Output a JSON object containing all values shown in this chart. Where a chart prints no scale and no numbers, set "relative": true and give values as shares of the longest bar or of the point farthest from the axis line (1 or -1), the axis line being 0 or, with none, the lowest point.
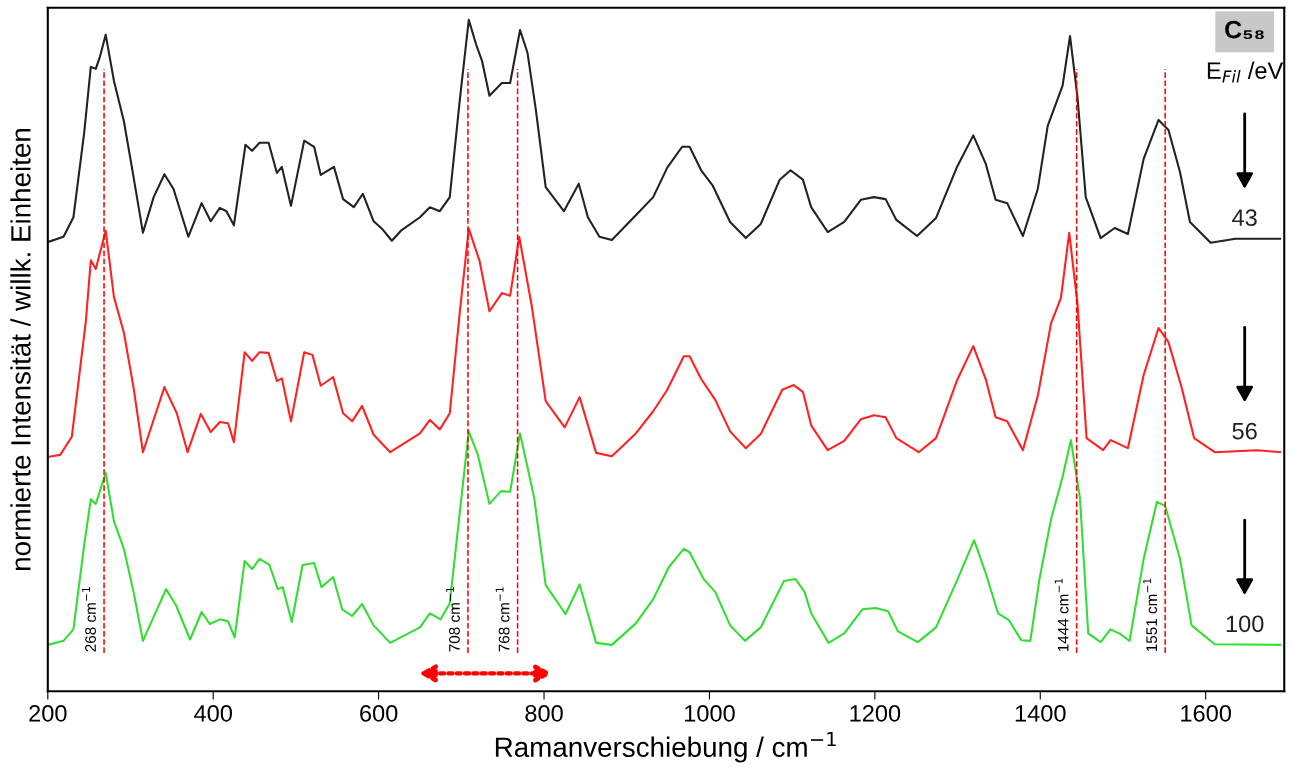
{
  "chart_data": {
    "type": "line",
    "relative": true,
    "xlabel": "Ramanverschiebung / cm$^{−1}$",
    "ylabel": "normierte Intensität / willk. Einheiten",
    "legend_title": "E$_{Fil}$ /eV",
    "annotations": [
      "C₅₈"
    ],
    "xlim": [
      200,
      1695
    ],
    "xticks": [
      200,
      400,
      600,
      800,
      1000,
      1200,
      1400,
      1600
    ],
    "grid": false,
    "marker": "none",
    "line_style": "solid",
    "series": [
      {
        "name": "43",
        "color": "#222222",
        "x": [
          200,
          219,
          231,
          244,
          252,
          258,
          263,
          270,
          280,
          292,
          302,
          315,
          328,
          341,
          352,
          370,
          386,
          397,
          408,
          416,
          425,
          439,
          447,
          456,
          467,
          477,
          483,
          494,
          510,
          522,
          530,
          546,
          557,
          570,
          581,
          594,
          604,
          616,
          627,
          650,
          662,
          674,
          686,
          698,
          709,
          718,
          725,
          734,
          749,
          759,
          771,
          780,
          790,
          802,
          824,
          842,
          853,
          867,
          882,
          911,
          932,
          949,
          967,
          976,
          990,
          1004,
          1025,
          1044,
          1062,
          1085,
          1098,
          1113,
          1123,
          1143,
          1163,
          1183,
          1199,
          1213,
          1226,
          1251,
          1274,
          1299,
          1319,
          1334,
          1346,
          1360,
          1379,
          1397,
          1409,
          1427,
          1436,
          1445,
          1455,
          1473,
          1490,
          1506,
          1525,
          1543,
          1555,
          1569,
          1581,
          1606,
          1636,
          1690
        ],
        "values": [
          0.669,
          0.677,
          0.706,
          0.832,
          0.93,
          0.927,
          0.945,
          0.978,
          0.909,
          0.849,
          0.778,
          0.683,
          0.736,
          0.77,
          0.748,
          0.677,
          0.727,
          0.7,
          0.72,
          0.715,
          0.694,
          0.814,
          0.805,
          0.817,
          0.817,
          0.772,
          0.781,
          0.723,
          0.82,
          0.811,
          0.769,
          0.781,
          0.733,
          0.721,
          0.741,
          0.7,
          0.689,
          0.671,
          0.686,
          0.706,
          0.721,
          0.715,
          0.736,
          0.879,
          1.0,
          0.963,
          0.939,
          0.887,
          0.906,
          0.906,
          0.985,
          0.951,
          0.867,
          0.751,
          0.715,
          0.756,
          0.706,
          0.677,
          0.672,
          0.709,
          0.736,
          0.78,
          0.811,
          0.811,
          0.776,
          0.753,
          0.699,
          0.675,
          0.696,
          0.762,
          0.776,
          0.762,
          0.721,
          0.684,
          0.699,
          0.732,
          0.736,
          0.733,
          0.702,
          0.678,
          0.705,
          0.78,
          0.828,
          0.786,
          0.732,
          0.727,
          0.678,
          0.748,
          0.842,
          0.902,
          0.976,
          0.885,
          0.736,
          0.675,
          0.69,
          0.681,
          0.793,
          0.851,
          0.836,
          0.773,
          0.699,
          0.668,
          0.674,
          0.674
        ]
      },
      {
        "name": "56",
        "color": "#ff2222",
        "x": [
          200,
          215,
          229,
          246,
          252,
          258,
          270,
          280,
          292,
          304,
          315,
          341,
          356,
          369,
          385,
          397,
          408,
          418,
          425,
          438,
          447,
          456,
          467,
          477,
          483,
          494,
          510,
          520,
          530,
          545,
          557,
          568,
          580,
          594,
          614,
          650,
          662,
          674,
          686,
          698,
          709,
          722,
          734,
          749,
          759,
          770,
          785,
          802,
          825,
          843,
          863,
          882,
          911,
          932,
          949,
          969,
          976,
          990,
          1007,
          1025,
          1044,
          1062,
          1088,
          1102,
          1113,
          1123,
          1143,
          1163,
          1183,
          1199,
          1213,
          1226,
          1253,
          1274,
          1299,
          1319,
          1334,
          1346,
          1360,
          1379,
          1397,
          1413,
          1425,
          1435,
          1445,
          1456,
          1476,
          1485,
          1506,
          1525,
          1543,
          1555,
          1571,
          1586,
          1611,
          1662,
          1690
        ],
        "values": [
          0.349,
          0.352,
          0.379,
          0.551,
          0.642,
          0.629,
          0.686,
          0.587,
          0.534,
          0.45,
          0.356,
          0.453,
          0.414,
          0.356,
          0.413,
          0.386,
          0.401,
          0.399,
          0.371,
          0.505,
          0.492,
          0.505,
          0.504,
          0.462,
          0.466,
          0.402,
          0.505,
          0.501,
          0.455,
          0.468,
          0.414,
          0.402,
          0.425,
          0.382,
          0.356,
          0.384,
          0.404,
          0.39,
          0.414,
          0.563,
          0.689,
          0.641,
          0.566,
          0.593,
          0.589,
          0.677,
          0.575,
          0.432,
          0.393,
          0.438,
          0.355,
          0.35,
          0.384,
          0.417,
          0.449,
          0.499,
          0.499,
          0.465,
          0.434,
          0.387,
          0.362,
          0.383,
          0.449,
          0.456,
          0.446,
          0.396,
          0.359,
          0.373,
          0.405,
          0.411,
          0.408,
          0.377,
          0.356,
          0.377,
          0.462,
          0.514,
          0.465,
          0.408,
          0.402,
          0.359,
          0.44,
          0.548,
          0.586,
          0.683,
          0.577,
          0.377,
          0.359,
          0.374,
          0.362,
          0.471,
          0.541,
          0.52,
          0.452,
          0.377,
          0.356,
          0.359,
          0.356
        ]
      },
      {
        "name": "100",
        "color": "#33dd33",
        "x": [
          200,
          219,
          231,
          244,
          252,
          258,
          270,
          280,
          292,
          304,
          315,
          343,
          355,
          372,
          386,
          396,
          408,
          418,
          426,
          438,
          447,
          456,
          468,
          478,
          484,
          495,
          508,
          522,
          531,
          545,
          556,
          568,
          580,
          594,
          614,
          650,
          662,
          675,
          686,
          698,
          709,
          720,
          734,
          748,
          759,
          771,
          788,
          802,
          826,
          843,
          863,
          882,
          911,
          932,
          951,
          969,
          976,
          993,
          1007,
          1025,
          1043,
          1062,
          1090,
          1104,
          1115,
          1123,
          1144,
          1163,
          1185,
          1201,
          1216,
          1228,
          1252,
          1274,
          1299,
          1320,
          1334,
          1349,
          1362,
          1377,
          1388,
          1399,
          1413,
          1427,
          1437,
          1448,
          1458,
          1473,
          1485,
          1497,
          1508,
          1525,
          1541,
          1551,
          1569,
          1583,
          1611,
          1690
        ],
        "values": [
          0.069,
          0.075,
          0.092,
          0.218,
          0.286,
          0.279,
          0.325,
          0.253,
          0.212,
          0.146,
          0.075,
          0.152,
          0.128,
          0.077,
          0.118,
          0.1,
          0.107,
          0.104,
          0.08,
          0.194,
          0.182,
          0.197,
          0.188,
          0.152,
          0.155,
          0.103,
          0.188,
          0.191,
          0.155,
          0.17,
          0.122,
          0.112,
          0.13,
          0.098,
          0.072,
          0.095,
          0.116,
          0.107,
          0.131,
          0.265,
          0.387,
          0.352,
          0.279,
          0.298,
          0.297,
          0.384,
          0.289,
          0.158,
          0.115,
          0.159,
          0.072,
          0.069,
          0.101,
          0.137,
          0.185,
          0.212,
          0.207,
          0.167,
          0.148,
          0.098,
          0.075,
          0.095,
          0.164,
          0.167,
          0.148,
          0.116,
          0.072,
          0.086,
          0.122,
          0.124,
          0.119,
          0.089,
          0.073,
          0.095,
          0.164,
          0.225,
          0.176,
          0.116,
          0.106,
          0.076,
          0.075,
          0.167,
          0.256,
          0.319,
          0.374,
          0.288,
          0.086,
          0.073,
          0.092,
          0.085,
          0.075,
          0.197,
          0.282,
          0.276,
          0.197,
          0.098,
          0.07,
          0.069
        ]
      }
    ],
    "ref_lines": [
      {
        "axis": "x",
        "value": 268,
        "label": "268 cm$^{−1}$",
        "color": "#ff0000",
        "line_style": "dashed"
      },
      {
        "axis": "x",
        "value": 708,
        "label": "708 cm$^{−1}$",
        "color": "#ff0000",
        "line_style": "dashed"
      },
      {
        "axis": "x",
        "value": 768,
        "label": "768 cm$^{−1}$",
        "color": "#ff0000",
        "line_style": "dashed"
      },
      {
        "axis": "x",
        "value": 1444,
        "label": "1444 cm$^{−1}$",
        "color": "#ff0000",
        "line_style": "dashed"
      },
      {
        "axis": "x",
        "value": 1551,
        "label": "1551 cm$^{−1}$",
        "color": "#ff0000",
        "line_style": "dashed"
      }
    ]
  }
}
